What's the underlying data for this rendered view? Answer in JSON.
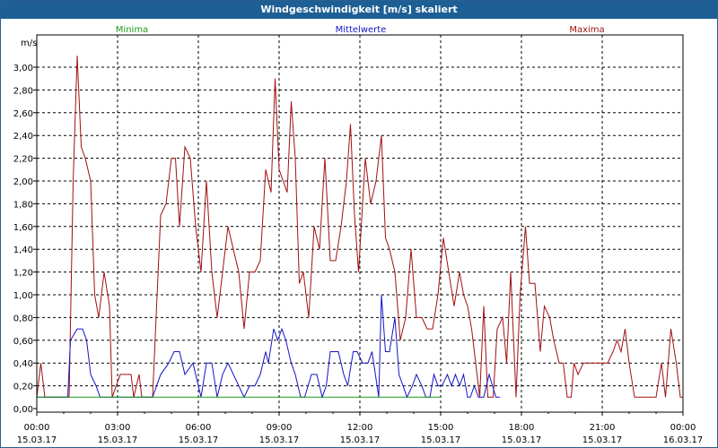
{
  "window": {
    "title": "Windgeschwindigkeit [m/s] skaliert"
  },
  "colors": {
    "titlebar": "#1d5f95",
    "minima": "#1a9a1a",
    "mittelwerte": "#1414c8",
    "maxima": "#a01010",
    "grid": "#000000"
  },
  "chart_data": {
    "type": "line",
    "title": "Windgeschwindigkeit [m/s] skaliert",
    "ylabel": "m/s",
    "xlabel": "",
    "ylim": [
      0,
      3.15
    ],
    "xlim": [
      0,
      24
    ],
    "grid": true,
    "legend_placement": "top",
    "yticks": [
      "0,00",
      "0,20",
      "0,40",
      "0,60",
      "0,80",
      "1,00",
      "1,20",
      "1,40",
      "1,60",
      "1,80",
      "2,00",
      "2,20",
      "2,40",
      "2,60",
      "2,80",
      "3,00"
    ],
    "xticks": [
      {
        "time": "00:00",
        "date": "15.03.17"
      },
      {
        "time": "03:00",
        "date": "15.03.17"
      },
      {
        "time": "06:00",
        "date": "15.03.17"
      },
      {
        "time": "09:00",
        "date": "15.03.17"
      },
      {
        "time": "12:00",
        "date": "15.03.17"
      },
      {
        "time": "15:00",
        "date": "15.03.17"
      },
      {
        "time": "18:00",
        "date": "15.03.17"
      },
      {
        "time": "21:00",
        "date": "15.03.17"
      },
      {
        "time": "00:00",
        "date": "16.03.17"
      }
    ],
    "series": [
      {
        "name": "Minima",
        "color": "#1a9a1a",
        "points": [
          [
            0,
            0.1
          ],
          [
            15,
            0.1
          ]
        ]
      },
      {
        "name": "Mittelwerte",
        "color": "#1414c8",
        "points": [
          [
            0,
            0.1
          ],
          [
            1.15,
            0.1
          ],
          [
            1.25,
            0.6
          ],
          [
            1.5,
            0.7
          ],
          [
            1.7,
            0.7
          ],
          [
            1.85,
            0.6
          ],
          [
            2.0,
            0.3
          ],
          [
            2.2,
            0.2
          ],
          [
            2.35,
            0.1
          ],
          [
            2.8,
            0.1
          ],
          [
            4.3,
            0.1
          ],
          [
            4.6,
            0.3
          ],
          [
            4.9,
            0.4
          ],
          [
            5.1,
            0.5
          ],
          [
            5.3,
            0.5
          ],
          [
            5.5,
            0.3
          ],
          [
            5.8,
            0.4
          ],
          [
            6.0,
            0.2
          ],
          [
            6.1,
            0.1
          ],
          [
            6.3,
            0.4
          ],
          [
            6.5,
            0.4
          ],
          [
            6.7,
            0.1
          ],
          [
            6.9,
            0.3
          ],
          [
            7.1,
            0.4
          ],
          [
            7.3,
            0.3
          ],
          [
            7.5,
            0.2
          ],
          [
            7.7,
            0.1
          ],
          [
            7.9,
            0.2
          ],
          [
            8.1,
            0.2
          ],
          [
            8.3,
            0.3
          ],
          [
            8.5,
            0.5
          ],
          [
            8.6,
            0.4
          ],
          [
            8.8,
            0.7
          ],
          [
            8.95,
            0.6
          ],
          [
            9.1,
            0.7
          ],
          [
            9.25,
            0.6
          ],
          [
            9.45,
            0.4
          ],
          [
            9.6,
            0.3
          ],
          [
            9.8,
            0.1
          ],
          [
            9.95,
            0.1
          ],
          [
            10.2,
            0.3
          ],
          [
            10.4,
            0.3
          ],
          [
            10.6,
            0.1
          ],
          [
            10.75,
            0.2
          ],
          [
            10.9,
            0.5
          ],
          [
            11.2,
            0.5
          ],
          [
            11.4,
            0.3
          ],
          [
            11.55,
            0.2
          ],
          [
            11.75,
            0.5
          ],
          [
            11.9,
            0.5
          ],
          [
            12.1,
            0.4
          ],
          [
            12.3,
            0.4
          ],
          [
            12.45,
            0.5
          ],
          [
            12.7,
            0.1
          ],
          [
            12.8,
            1.0
          ],
          [
            12.95,
            0.5
          ],
          [
            13.1,
            0.5
          ],
          [
            13.3,
            0.8
          ],
          [
            13.45,
            0.3
          ],
          [
            13.6,
            0.2
          ],
          [
            13.75,
            0.1
          ],
          [
            13.95,
            0.2
          ],
          [
            14.1,
            0.3
          ],
          [
            14.3,
            0.2
          ],
          [
            14.45,
            0.1
          ],
          [
            14.6,
            0.1
          ],
          [
            14.75,
            0.3
          ],
          [
            14.9,
            0.2
          ],
          [
            15.05,
            0.2
          ],
          [
            15.25,
            0.3
          ],
          [
            15.4,
            0.2
          ],
          [
            15.55,
            0.3
          ],
          [
            15.7,
            0.2
          ],
          [
            15.85,
            0.3
          ],
          [
            16.0,
            0.1
          ],
          [
            16.1,
            0.1
          ],
          [
            16.25,
            0.2
          ],
          [
            16.4,
            0.1
          ],
          [
            16.6,
            0.1
          ],
          [
            16.8,
            0.3
          ],
          [
            17.05,
            0.1
          ],
          [
            17.2,
            0.1
          ]
        ]
      },
      {
        "name": "Maxima",
        "color": "#a01010",
        "points": [
          [
            0,
            0.1
          ],
          [
            0.15,
            0.4
          ],
          [
            0.3,
            0.1
          ],
          [
            0.5,
            0.1
          ],
          [
            1.2,
            0.1
          ],
          [
            1.35,
            2.0
          ],
          [
            1.5,
            3.1
          ],
          [
            1.65,
            2.3
          ],
          [
            1.8,
            2.2
          ],
          [
            2.0,
            2.0
          ],
          [
            2.15,
            1.0
          ],
          [
            2.3,
            0.8
          ],
          [
            2.5,
            1.2
          ],
          [
            2.7,
            0.9
          ],
          [
            2.8,
            0.1
          ],
          [
            3.1,
            0.3
          ],
          [
            3.5,
            0.3
          ],
          [
            3.6,
            0.1
          ],
          [
            3.8,
            0.3
          ],
          [
            3.9,
            0.1
          ],
          [
            4.3,
            0.1
          ],
          [
            4.6,
            1.7
          ],
          [
            4.8,
            1.8
          ],
          [
            5.0,
            2.2
          ],
          [
            5.15,
            2.2
          ],
          [
            5.3,
            1.6
          ],
          [
            5.5,
            2.3
          ],
          [
            5.7,
            2.2
          ],
          [
            5.9,
            1.6
          ],
          [
            6.1,
            1.2
          ],
          [
            6.3,
            2.0
          ],
          [
            6.5,
            1.2
          ],
          [
            6.7,
            0.8
          ],
          [
            6.9,
            1.2
          ],
          [
            7.1,
            1.6
          ],
          [
            7.3,
            1.4
          ],
          [
            7.5,
            1.2
          ],
          [
            7.7,
            0.7
          ],
          [
            7.9,
            1.2
          ],
          [
            8.1,
            1.2
          ],
          [
            8.3,
            1.3
          ],
          [
            8.5,
            2.1
          ],
          [
            8.7,
            1.9
          ],
          [
            8.85,
            2.9
          ],
          [
            9.0,
            2.1
          ],
          [
            9.15,
            2.0
          ],
          [
            9.3,
            1.9
          ],
          [
            9.45,
            2.7
          ],
          [
            9.6,
            2.2
          ],
          [
            9.75,
            1.1
          ],
          [
            9.9,
            1.2
          ],
          [
            10.1,
            0.8
          ],
          [
            10.3,
            1.6
          ],
          [
            10.5,
            1.4
          ],
          [
            10.7,
            2.2
          ],
          [
            10.9,
            1.3
          ],
          [
            11.1,
            1.3
          ],
          [
            11.3,
            1.6
          ],
          [
            11.5,
            2.0
          ],
          [
            11.65,
            2.5
          ],
          [
            11.8,
            1.7
          ],
          [
            11.95,
            1.2
          ],
          [
            12.2,
            2.2
          ],
          [
            12.4,
            1.8
          ],
          [
            12.6,
            2.0
          ],
          [
            12.8,
            2.4
          ],
          [
            12.95,
            1.5
          ],
          [
            13.1,
            1.4
          ],
          [
            13.3,
            1.2
          ],
          [
            13.5,
            0.6
          ],
          [
            13.7,
            0.8
          ],
          [
            13.9,
            1.4
          ],
          [
            14.1,
            0.8
          ],
          [
            14.3,
            0.8
          ],
          [
            14.5,
            0.7
          ],
          [
            14.7,
            0.7
          ],
          [
            14.9,
            1.0
          ],
          [
            15.1,
            1.5
          ],
          [
            15.3,
            1.2
          ],
          [
            15.5,
            0.9
          ],
          [
            15.7,
            1.2
          ],
          [
            15.85,
            1.0
          ],
          [
            16.0,
            0.9
          ],
          [
            16.15,
            0.7
          ],
          [
            16.3,
            0.4
          ],
          [
            16.45,
            0.1
          ],
          [
            16.6,
            0.9
          ],
          [
            16.75,
            0.1
          ],
          [
            16.95,
            0.1
          ],
          [
            17.1,
            0.7
          ],
          [
            17.3,
            0.8
          ],
          [
            17.45,
            0.4
          ],
          [
            17.6,
            1.2
          ],
          [
            17.8,
            0.1
          ],
          [
            17.95,
            1.0
          ],
          [
            18.15,
            1.6
          ],
          [
            18.3,
            1.1
          ],
          [
            18.5,
            1.1
          ],
          [
            18.7,
            0.5
          ],
          [
            18.85,
            0.9
          ],
          [
            19.05,
            0.8
          ],
          [
            19.2,
            0.6
          ],
          [
            19.4,
            0.4
          ],
          [
            19.55,
            0.4
          ],
          [
            19.7,
            0.1
          ],
          [
            19.85,
            0.1
          ],
          [
            19.95,
            0.4
          ],
          [
            20.1,
            0.3
          ],
          [
            20.3,
            0.4
          ],
          [
            21.2,
            0.4
          ],
          [
            21.4,
            0.5
          ],
          [
            21.55,
            0.6
          ],
          [
            21.7,
            0.5
          ],
          [
            21.85,
            0.7
          ],
          [
            22.0,
            0.4
          ],
          [
            22.2,
            0.1
          ],
          [
            22.4,
            0.1
          ],
          [
            23.0,
            0.1
          ],
          [
            23.2,
            0.4
          ],
          [
            23.35,
            0.1
          ],
          [
            23.55,
            0.7
          ],
          [
            23.75,
            0.4
          ],
          [
            23.9,
            0.1
          ],
          [
            24.1,
            0.1
          ],
          [
            24.3,
            0.4
          ],
          [
            24.45,
            0.1
          ],
          [
            24.6,
            0.1
          ]
        ]
      }
    ]
  }
}
